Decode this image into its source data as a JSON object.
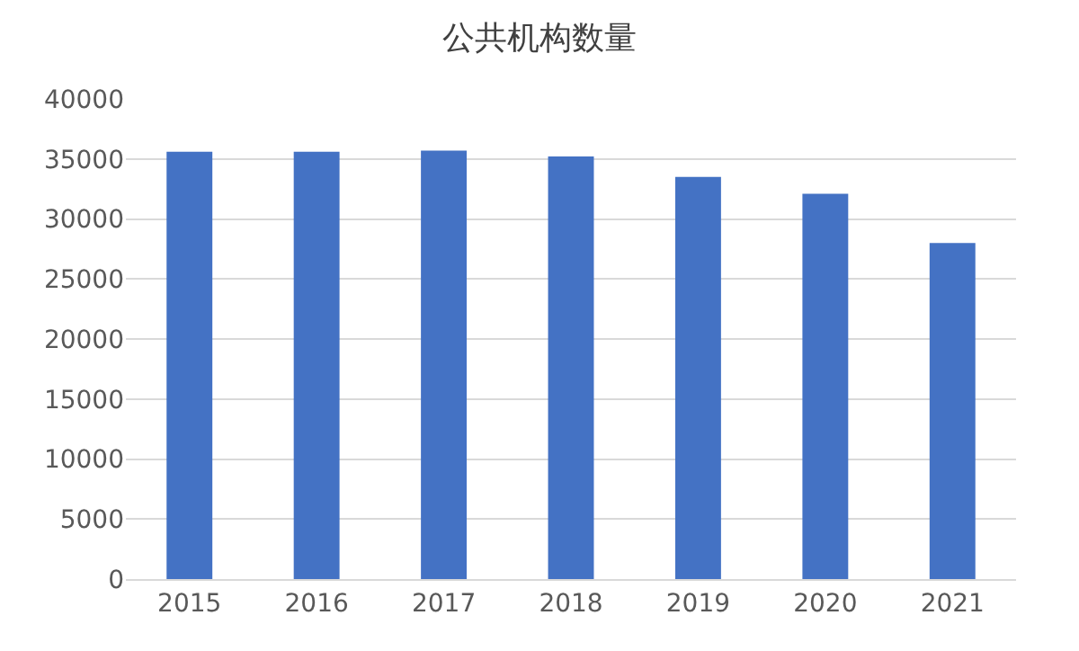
{
  "chart_data": {
    "type": "bar",
    "title": "公共机构数量",
    "categories": [
      "2015",
      "2016",
      "2017",
      "2018",
      "2019",
      "2020",
      "2021"
    ],
    "values": [
      35600,
      35600,
      35700,
      35200,
      33500,
      32100,
      28000
    ],
    "color": "#4472c4",
    "ylim": [
      0,
      40000
    ],
    "yticks": [
      0,
      5000,
      10000,
      15000,
      20000,
      25000,
      30000,
      35000,
      40000
    ],
    "grid": "y",
    "legend": false
  }
}
